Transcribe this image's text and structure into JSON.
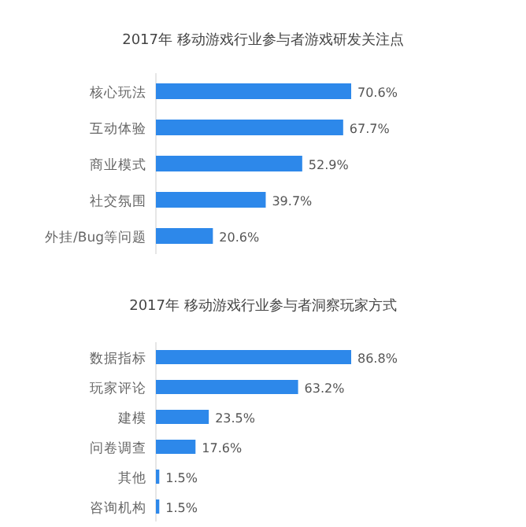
{
  "chart_data": [
    {
      "type": "bar",
      "orientation": "horizontal",
      "title": "2017年 移动游戏行业参与者游戏研发关注点",
      "categories": [
        "核心玩法",
        "互动体验",
        "商业模式",
        "社交氛围",
        "外挂/Bug等问题"
      ],
      "values": [
        70.6,
        67.7,
        52.9,
        39.7,
        20.6
      ],
      "value_labels": [
        "70.6%",
        "67.7%",
        "52.9%",
        "39.7%",
        "20.6%"
      ],
      "color": "#2d88ea"
    },
    {
      "type": "bar",
      "orientation": "horizontal",
      "title": "2017年 移动游戏行业参与者洞察玩家方式",
      "categories": [
        "数据指标",
        "玩家评论",
        "建模",
        "问卷调查",
        "其他",
        "咨询机构"
      ],
      "values": [
        86.8,
        63.2,
        23.5,
        17.6,
        1.5,
        1.5
      ],
      "value_labels": [
        "86.8%",
        "63.2%",
        "23.5%",
        "17.6%",
        "1.5%",
        "1.5%"
      ],
      "color": "#2d88ea"
    }
  ]
}
